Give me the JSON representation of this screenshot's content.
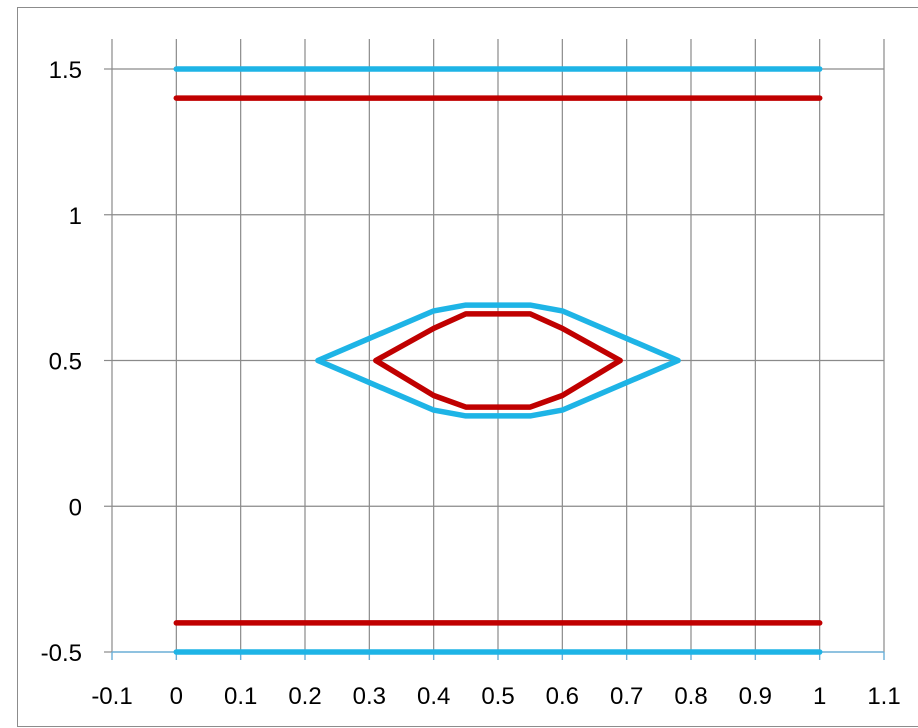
{
  "chart_data": {
    "type": "line",
    "title": "",
    "xlabel": "",
    "ylabel": "",
    "xlim": [
      -0.1,
      1.1
    ],
    "ylim": [
      -0.5,
      1.5
    ],
    "x_ticks": [
      -0.1,
      0,
      0.1,
      0.2,
      0.3,
      0.4,
      0.5,
      0.6,
      0.7,
      0.8,
      0.9,
      1,
      1.1
    ],
    "x_tick_labels": [
      "-0.1",
      "0",
      "0.1",
      "0.2",
      "0.3",
      "0.4",
      "0.5",
      "0.6",
      "0.7",
      "0.8",
      "0.9",
      "1",
      "1.1"
    ],
    "y_ticks": [
      -0.5,
      0,
      0.5,
      1,
      1.5
    ],
    "y_tick_labels": [
      "-0.5",
      "0",
      "0.5",
      "1",
      "1.5"
    ],
    "grid": true,
    "legend": "none",
    "series": [
      {
        "color": "#1eb4e6",
        "points": [
          [
            0,
            1.5
          ],
          [
            1,
            1.5
          ]
        ]
      },
      {
        "color": "#c00000",
        "points": [
          [
            0,
            1.4
          ],
          [
            1,
            1.4
          ]
        ]
      },
      {
        "color": "#c00000",
        "points": [
          [
            0,
            -0.4
          ],
          [
            1,
            -0.4
          ]
        ]
      },
      {
        "color": "#1eb4e6",
        "points": [
          [
            0,
            -0.5
          ],
          [
            1,
            -0.5
          ]
        ]
      },
      {
        "color": "#1eb4e6",
        "points": [
          [
            0.22,
            0.5
          ],
          [
            0.4,
            0.67
          ],
          [
            0.45,
            0.69
          ],
          [
            0.55,
            0.69
          ],
          [
            0.6,
            0.67
          ],
          [
            0.78,
            0.5
          ],
          [
            0.6,
            0.33
          ],
          [
            0.55,
            0.31
          ],
          [
            0.45,
            0.31
          ],
          [
            0.4,
            0.33
          ],
          [
            0.22,
            0.5
          ]
        ]
      },
      {
        "color": "#c00000",
        "points": [
          [
            0.31,
            0.5
          ],
          [
            0.4,
            0.61
          ],
          [
            0.45,
            0.66
          ],
          [
            0.55,
            0.66
          ],
          [
            0.6,
            0.61
          ],
          [
            0.69,
            0.5
          ],
          [
            0.6,
            0.38
          ],
          [
            0.55,
            0.34
          ],
          [
            0.45,
            0.34
          ],
          [
            0.4,
            0.38
          ],
          [
            0.31,
            0.5
          ]
        ]
      }
    ]
  }
}
